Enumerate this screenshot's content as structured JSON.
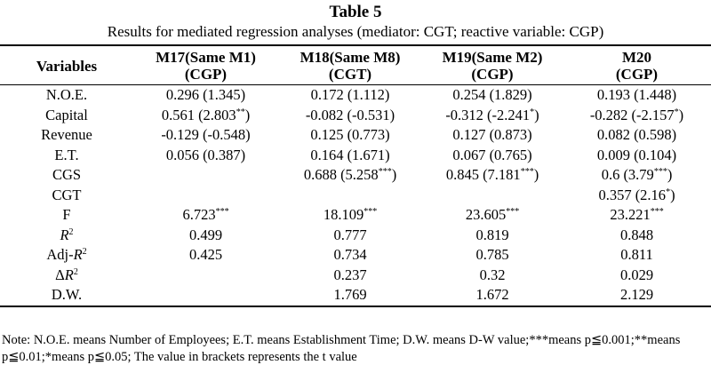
{
  "title": "Table 5",
  "subtitle": "Results for mediated regression analyses (mediator: CGT; reactive variable: CGP)",
  "header": {
    "variables": "Variables",
    "models": [
      {
        "name": "M17(Same M1)",
        "dv": "(CGP)"
      },
      {
        "name": "M18(Same M8)",
        "dv": "(CGT)"
      },
      {
        "name": "M19(Same M2)",
        "dv": "(CGP)"
      },
      {
        "name": "M20",
        "dv": "(CGP)"
      }
    ]
  },
  "rows": [
    {
      "label": "N.O.E.",
      "cells": [
        {
          "text": "0.296 (1.345)",
          "sup": "",
          "after": ""
        },
        {
          "text": "0.172 (1.112)",
          "sup": "",
          "after": ""
        },
        {
          "text": "0.254 (1.829)",
          "sup": "",
          "after": ""
        },
        {
          "text": "0.193 (1.448)",
          "sup": "",
          "after": ""
        }
      ]
    },
    {
      "label": "Capital",
      "cells": [
        {
          "text": "0.561 (2.803",
          "sup": "**",
          "after": ")"
        },
        {
          "text": "-0.082 (-0.531)",
          "sup": "",
          "after": ""
        },
        {
          "text": "-0.312 (-2.241",
          "sup": "*",
          "after": ")"
        },
        {
          "text": "-0.282 (-2.157",
          "sup": "*",
          "after": ")"
        }
      ]
    },
    {
      "label": "Revenue",
      "cells": [
        {
          "text": "-0.129 (-0.548)",
          "sup": "",
          "after": ""
        },
        {
          "text": "0.125 (0.773)",
          "sup": "",
          "after": ""
        },
        {
          "text": "0.127 (0.873)",
          "sup": "",
          "after": ""
        },
        {
          "text": "0.082 (0.598)",
          "sup": "",
          "after": ""
        }
      ]
    },
    {
      "label": "E.T.",
      "cells": [
        {
          "text": "0.056 (0.387)",
          "sup": "",
          "after": ""
        },
        {
          "text": "0.164 (1.671)",
          "sup": "",
          "after": ""
        },
        {
          "text": "0.067 (0.765)",
          "sup": "",
          "after": ""
        },
        {
          "text": "0.009 (0.104)",
          "sup": "",
          "after": ""
        }
      ]
    },
    {
      "label": "CGS",
      "cells": [
        {
          "text": "",
          "sup": "",
          "after": ""
        },
        {
          "text": "0.688 (5.258",
          "sup": "***",
          "after": ")"
        },
        {
          "text": "0.845 (7.181",
          "sup": "***",
          "after": ")"
        },
        {
          "text": "0.6 (3.79",
          "sup": "***",
          "after": ")"
        }
      ]
    },
    {
      "label": "CGT",
      "cells": [
        {
          "text": "",
          "sup": "",
          "after": ""
        },
        {
          "text": "",
          "sup": "",
          "after": ""
        },
        {
          "text": "",
          "sup": "",
          "after": ""
        },
        {
          "text": "0.357 (2.16",
          "sup": "*",
          "after": ")"
        }
      ]
    },
    {
      "label": "F",
      "cells": [
        {
          "text": "6.723",
          "sup": "***",
          "after": ""
        },
        {
          "text": "18.109",
          "sup": "***",
          "after": ""
        },
        {
          "text": "23.605",
          "sup": "***",
          "after": ""
        },
        {
          "text": "23.221",
          "sup": "***",
          "after": ""
        }
      ]
    },
    {
      "label_pre": "",
      "label_it": "R",
      "label_sup": "2",
      "cells": [
        {
          "text": "0.499",
          "sup": "",
          "after": ""
        },
        {
          "text": "0.777",
          "sup": "",
          "after": ""
        },
        {
          "text": "0.819",
          "sup": "",
          "after": ""
        },
        {
          "text": "0.848",
          "sup": "",
          "after": ""
        }
      ]
    },
    {
      "label_pre": "Adj-",
      "label_it": "R",
      "label_sup": "2",
      "cells": [
        {
          "text": "0.425",
          "sup": "",
          "after": ""
        },
        {
          "text": "0.734",
          "sup": "",
          "after": ""
        },
        {
          "text": "0.785",
          "sup": "",
          "after": ""
        },
        {
          "text": "0.811",
          "sup": "",
          "after": ""
        }
      ]
    },
    {
      "label_pre": "Δ",
      "label_it": "R",
      "label_sup": "2",
      "cells": [
        {
          "text": "",
          "sup": "",
          "after": ""
        },
        {
          "text": "0.237",
          "sup": "",
          "after": ""
        },
        {
          "text": "0.32",
          "sup": "",
          "after": ""
        },
        {
          "text": "0.029",
          "sup": "",
          "after": ""
        }
      ]
    },
    {
      "label": "D.W.",
      "cells": [
        {
          "text": "",
          "sup": "",
          "after": ""
        },
        {
          "text": "1.769",
          "sup": "",
          "after": ""
        },
        {
          "text": "1.672",
          "sup": "",
          "after": ""
        },
        {
          "text": "2.129",
          "sup": "",
          "after": ""
        }
      ]
    }
  ],
  "note": "Note: N.O.E. means Number of Employees; E.T. means Establishment Time; D.W. means D-W value;***means p≦0.001;**means p≦0.01;*means p≦0.05; The value in brackets represents the t value"
}
